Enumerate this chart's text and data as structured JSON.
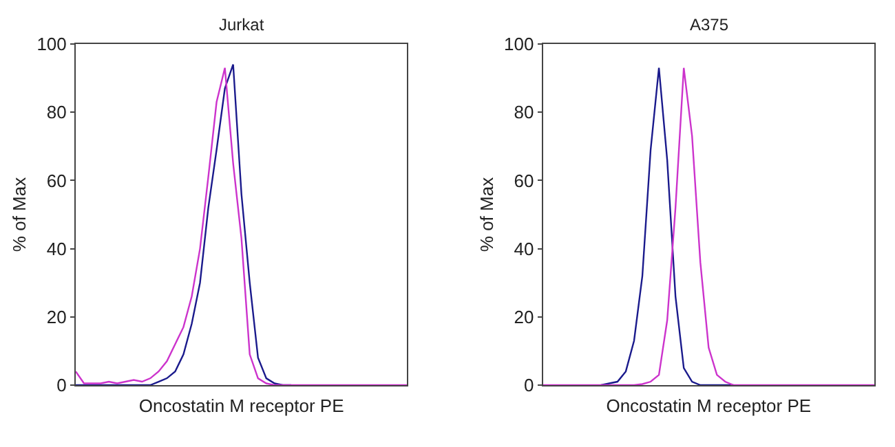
{
  "chart_data": [
    {
      "type": "line",
      "title": "Jurkat",
      "xlabel": "Oncostatin M receptor PE",
      "ylabel": "% of Max",
      "categories": [
        null,
        null,
        null,
        null,
        null,
        null,
        null,
        null,
        null,
        null,
        null,
        null,
        null,
        null,
        null,
        null,
        null,
        null,
        null,
        null,
        null,
        null,
        null,
        null,
        null,
        null,
        null,
        null,
        null,
        null,
        null,
        null,
        null,
        null,
        null,
        null,
        null,
        null,
        null,
        null,
        null
      ],
      "series": [
        {
          "color": "#1a1a8c",
          "values": [
            0,
            0,
            0,
            0,
            0,
            0,
            0,
            0,
            0,
            0,
            1,
            2,
            4,
            9,
            18,
            30,
            52,
            69,
            87,
            94,
            56,
            30,
            8,
            2,
            0.5,
            0,
            0,
            null,
            null,
            null,
            null,
            null,
            null,
            null,
            null,
            null,
            null,
            null,
            null,
            null,
            null
          ]
        },
        {
          "color": "#cc33cc",
          "values": [
            4,
            0.5,
            0.5,
            0.5,
            1,
            0.5,
            1,
            1.5,
            1,
            2,
            4,
            7,
            12,
            17,
            26,
            40,
            61,
            83,
            93,
            65,
            43,
            9,
            2,
            0.5,
            0,
            0,
            0,
            0,
            0,
            0,
            0,
            0,
            0,
            0,
            0,
            0,
            0,
            0,
            0,
            0,
            0
          ]
        }
      ],
      "ylim": [
        0,
        100
      ],
      "yticks": [
        0,
        20,
        40,
        60,
        80,
        100
      ],
      "tick_labels": "y"
    },
    {
      "type": "line",
      "title": "A375",
      "xlabel": "Oncostatin M receptor PE",
      "ylabel": "% of Max",
      "categories": [
        null,
        null,
        null,
        null,
        null,
        null,
        null,
        null,
        null,
        null,
        null,
        null,
        null,
        null,
        null,
        null,
        null,
        null,
        null,
        null,
        null,
        null,
        null,
        null,
        null,
        null,
        null,
        null,
        null,
        null,
        null,
        null,
        null,
        null,
        null,
        null,
        null,
        null,
        null,
        null,
        null
      ],
      "series": [
        {
          "color": "#1a1a8c",
          "values": [
            null,
            null,
            null,
            null,
            null,
            null,
            null,
            0,
            0.5,
            1,
            4,
            13,
            32,
            69,
            93,
            66,
            26,
            5,
            1,
            0,
            0,
            0,
            0,
            0,
            null,
            null,
            null,
            null,
            null,
            null,
            null,
            null,
            null,
            null,
            null,
            null,
            null,
            null,
            null,
            null,
            null
          ]
        },
        {
          "color": "#cc33cc",
          "values": [
            0,
            0,
            0,
            0,
            0,
            0,
            0,
            0,
            0,
            0,
            0,
            0,
            0.3,
            1,
            3,
            19,
            52,
            93,
            73,
            36,
            11,
            3,
            1,
            0,
            0,
            0,
            0,
            0,
            0,
            0,
            0,
            0,
            0,
            0,
            0,
            0,
            0,
            0,
            0,
            0,
            0
          ]
        }
      ],
      "ylim": [
        0,
        100
      ],
      "yticks": [
        0,
        20,
        40,
        60,
        80,
        100
      ],
      "tick_labels": "y"
    }
  ]
}
